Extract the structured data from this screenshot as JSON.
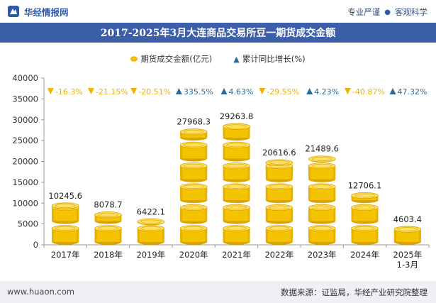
{
  "header": {
    "logo_text": "华经情报网",
    "tagline_left": "专业严谨",
    "tagline_right": "客观科学"
  },
  "title": "2017-2025年3月大连商品交易所豆一期货成交金额",
  "legend": {
    "series1": "期货成交金额(亿元)",
    "series2": "累计同比增长(%)"
  },
  "footer": {
    "website": "www.huaon.com",
    "source": "数据来源：证监局，华经产业研究院整理"
  },
  "colors": {
    "title_bg": "#3d5ea8",
    "coin_gold": "#f5c400",
    "coin_gold_dark": "#d9a300",
    "up_triangle": "#2a6a9a",
    "down_triangle": "#f0b400",
    "up_text": "#2a6a9a",
    "down_text": "#f0b400"
  },
  "chart_data": {
    "type": "bar",
    "categories": [
      "2017年",
      "2018年",
      "2019年",
      "2020年",
      "2021年",
      "2022年",
      "2023年",
      "2024年",
      "2025年\n1-3月"
    ],
    "series": [
      {
        "name": "期货成交金额(亿元)",
        "values": [
          10245.6,
          8078.7,
          6422.1,
          27968.3,
          29263.8,
          20616.6,
          21489.6,
          12706.1,
          4603.4
        ],
        "labels": [
          "10245.6",
          "8078.7",
          "6422.1",
          "27968.3",
          "29263.8",
          "20616.6",
          "21489.6",
          "12706.1",
          "4603.4"
        ]
      },
      {
        "name": "累计同比增长(%)",
        "values": [
          -16.3,
          -21.15,
          -20.51,
          335.5,
          4.63,
          -29.55,
          4.23,
          -40.87,
          47.32
        ],
        "labels": [
          "-16.3%",
          "-21.15%",
          "-20.51%",
          "335.5%",
          "4.63%",
          "-29.55%",
          "4.23%",
          "-40.87%",
          "47.32%"
        ]
      }
    ],
    "yticks": [
      "0",
      "5000",
      "10000",
      "15000",
      "20000",
      "25000",
      "30000",
      "35000",
      "40000"
    ],
    "ylim": [
      0,
      40000
    ],
    "grid": false,
    "legend_position": "top-center"
  }
}
